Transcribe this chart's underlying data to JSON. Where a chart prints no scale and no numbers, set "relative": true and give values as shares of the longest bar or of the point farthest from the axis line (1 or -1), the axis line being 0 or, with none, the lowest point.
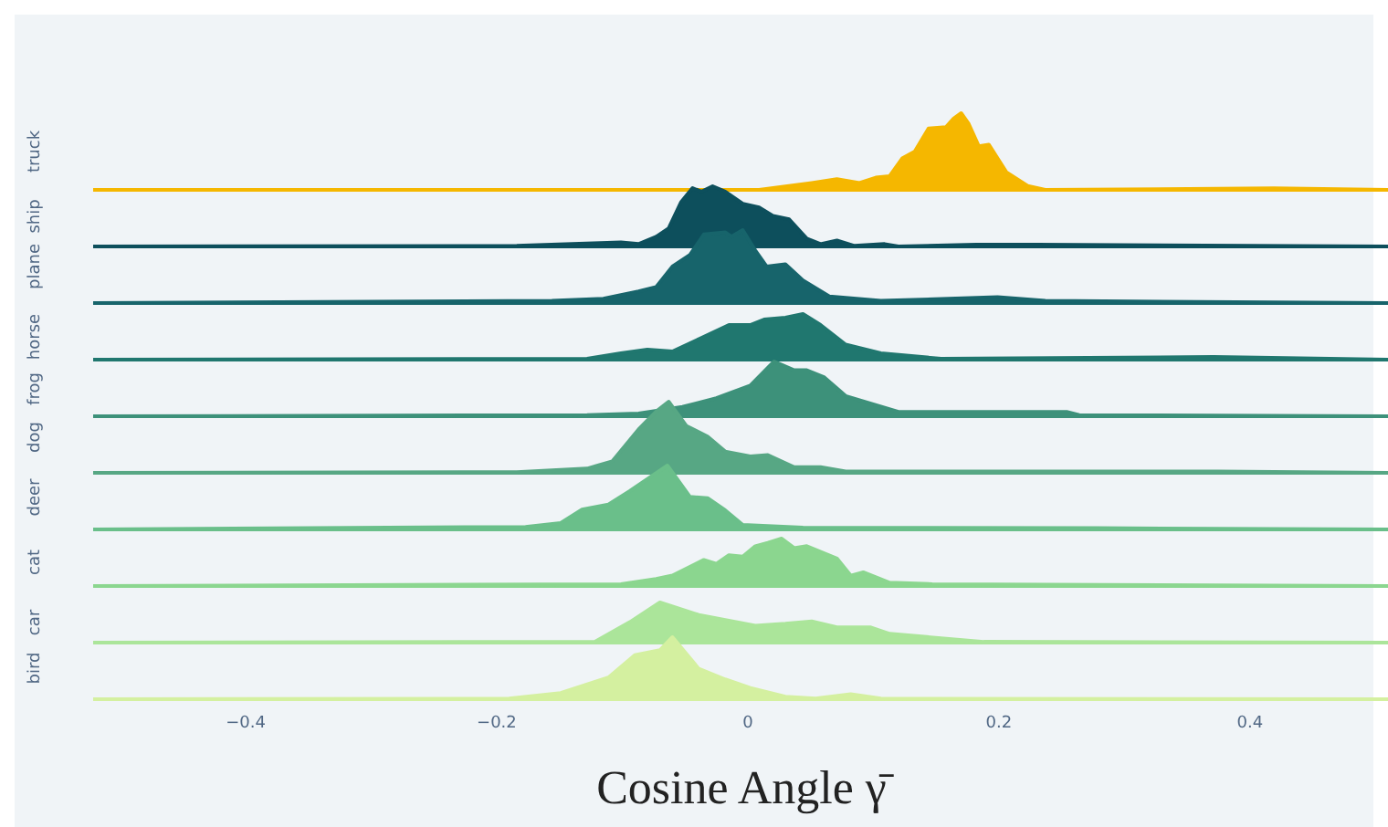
{
  "chart_data": [
    {
      "type": "area",
      "ylabel": "truck",
      "color": "#f5b700",
      "relative": true,
      "xlim": [
        -0.52,
        0.51
      ],
      "tick_labels": false,
      "x": [
        -0.52,
        0.009,
        0.051,
        0.071,
        0.089,
        0.102,
        0.113,
        0.123,
        0.133,
        0.144,
        0.158,
        0.164,
        0.17,
        0.176,
        0.184,
        0.192,
        0.206,
        0.223,
        0.237,
        0.419,
        0.51
      ],
      "values": [
        0,
        0,
        0.09,
        0.14,
        0.09,
        0.16,
        0.18,
        0.41,
        0.5,
        0.8,
        0.82,
        0.93,
        1,
        0.86,
        0.57,
        0.59,
        0.23,
        0.05,
        0,
        0.02,
        0
      ]
    },
    {
      "type": "area",
      "ylabel": "ship",
      "color": "#0d4f5c",
      "relative": true,
      "xlim": [
        -0.52,
        0.51
      ],
      "tick_labels": false,
      "x": [
        -0.52,
        -0.184,
        -0.101,
        -0.087,
        -0.073,
        -0.063,
        -0.053,
        -0.044,
        -0.037,
        -0.028,
        -0.018,
        -0.004,
        0.009,
        0.02,
        0.033,
        0.047,
        0.058,
        0.071,
        0.085,
        0.109,
        0.12,
        0.182,
        0.23,
        0.51
      ],
      "values": [
        0,
        0.01,
        0.07,
        0.04,
        0.16,
        0.3,
        0.74,
        0.97,
        0.91,
        1,
        0.91,
        0.71,
        0.65,
        0.51,
        0.45,
        0.13,
        0.04,
        0.1,
        0.01,
        0.04,
        0,
        0.03,
        0.03,
        0
      ]
    },
    {
      "type": "area",
      "ylabel": "plane",
      "color": "#17646b",
      "relative": true,
      "xlim": [
        -0.52,
        0.51
      ],
      "tick_labels": false,
      "x": [
        -0.52,
        -0.156,
        -0.115,
        -0.087,
        -0.073,
        -0.06,
        -0.046,
        -0.035,
        -0.018,
        -0.013,
        -0.004,
        0.006,
        0.015,
        0.03,
        0.044,
        0.065,
        0.106,
        0.199,
        0.237,
        0.51
      ],
      "values": [
        0,
        0.03,
        0.06,
        0.16,
        0.22,
        0.5,
        0.66,
        0.94,
        0.97,
        0.91,
        1,
        0.72,
        0.5,
        0.53,
        0.31,
        0.09,
        0.03,
        0.08,
        0.03,
        0
      ]
    },
    {
      "type": "area",
      "ylabel": "horse",
      "color": "#20776f",
      "relative": true,
      "xlim": [
        -0.52,
        0.51
      ],
      "tick_labels": false,
      "x": [
        -0.52,
        -0.128,
        -0.101,
        -0.08,
        -0.06,
        -0.039,
        -0.015,
        0.002,
        0.013,
        0.03,
        0.044,
        0.058,
        0.078,
        0.106,
        0.154,
        0.371,
        0.51
      ],
      "values": [
        0,
        0.02,
        0.14,
        0.22,
        0.18,
        0.45,
        0.76,
        0.76,
        0.88,
        0.92,
        1,
        0.76,
        0.33,
        0.14,
        0.02,
        0.06,
        0
      ]
    },
    {
      "type": "area",
      "ylabel": "frog",
      "color": "#3d917a",
      "relative": true,
      "xlim": [
        -0.52,
        0.51
      ],
      "tick_labels": false,
      "x": [
        -0.52,
        -0.128,
        -0.087,
        -0.052,
        -0.025,
        0.002,
        0.021,
        0.037,
        0.047,
        0.061,
        0.078,
        0.12,
        0.175,
        0.254,
        0.264,
        0.51
      ],
      "values": [
        0,
        0.02,
        0.05,
        0.17,
        0.33,
        0.56,
        1,
        0.84,
        0.84,
        0.71,
        0.37,
        0.08,
        0.08,
        0.08,
        0.02,
        0
      ]
    },
    {
      "type": "area",
      "ylabel": "dog",
      "color": "#57a784",
      "relative": true,
      "xlim": [
        -0.52,
        0.51
      ],
      "tick_labels": false,
      "x": [
        -0.52,
        -0.184,
        -0.128,
        -0.108,
        -0.087,
        -0.073,
        -0.063,
        -0.049,
        -0.032,
        -0.018,
        0.002,
        0.016,
        0.037,
        0.058,
        0.078,
        0.374,
        0.51
      ],
      "values": [
        0,
        0.01,
        0.06,
        0.16,
        0.61,
        0.86,
        1,
        0.66,
        0.51,
        0.3,
        0.23,
        0.25,
        0.08,
        0.08,
        0.02,
        0.02,
        0
      ]
    },
    {
      "type": "area",
      "ylabel": "deer",
      "color": "#6abf8a",
      "relative": true,
      "xlim": [
        -0.52,
        0.51
      ],
      "tick_labels": false,
      "x": [
        -0.52,
        -0.177,
        -0.149,
        -0.132,
        -0.111,
        -0.094,
        -0.064,
        -0.046,
        -0.032,
        -0.018,
        -0.004,
        0.044,
        0.278,
        0.51
      ],
      "values": [
        0,
        0.04,
        0.1,
        0.31,
        0.39,
        0.6,
        1,
        0.51,
        0.49,
        0.3,
        0.07,
        0.03,
        0.02,
        0
      ]
    },
    {
      "type": "area",
      "ylabel": "cat",
      "color": "#8bd68f",
      "relative": true,
      "xlim": [
        -0.52,
        0.51
      ],
      "tick_labels": false,
      "x": [
        -0.52,
        -0.101,
        -0.073,
        -0.06,
        -0.035,
        -0.025,
        -0.015,
        -0.004,
        0.006,
        0.016,
        0.027,
        0.037,
        0.047,
        0.071,
        0.082,
        0.092,
        0.113,
        0.147,
        0.51
      ],
      "values": [
        0,
        0.04,
        0.15,
        0.22,
        0.55,
        0.47,
        0.65,
        0.62,
        0.84,
        0.91,
        1,
        0.8,
        0.84,
        0.58,
        0.22,
        0.29,
        0.07,
        0.04,
        0
      ]
    },
    {
      "type": "area",
      "ylabel": "car",
      "color": "#abe59a",
      "relative": true,
      "xlim": [
        -0.52,
        0.51
      ],
      "tick_labels": false,
      "x": [
        -0.52,
        -0.122,
        -0.094,
        -0.07,
        -0.039,
        0.006,
        0.03,
        0.051,
        0.071,
        0.098,
        0.113,
        0.154,
        0.188,
        0.51
      ],
      "values": [
        0,
        0.02,
        0.51,
        1,
        0.69,
        0.42,
        0.47,
        0.53,
        0.38,
        0.38,
        0.22,
        0.11,
        0.02,
        0
      ]
    },
    {
      "type": "area",
      "ylabel": "bird",
      "color": "#d4f0a0",
      "relative": true,
      "xlim": [
        -0.52,
        0.51
      ],
      "tick_labels": "x",
      "xlabel": "Cosine Angle γ̄",
      "xticks": [
        {
          "value": -0.4,
          "label": "−0.4"
        },
        {
          "value": -0.2,
          "label": "−0.2"
        },
        0,
        0.2,
        0.4
      ],
      "x": [
        -0.52,
        -0.19,
        -0.149,
        -0.111,
        -0.09,
        -0.07,
        -0.06,
        -0.039,
        -0.018,
        0.002,
        0.03,
        0.054,
        0.082,
        0.106,
        0.51
      ],
      "values": [
        0,
        0.01,
        0.1,
        0.35,
        0.71,
        0.79,
        1,
        0.49,
        0.32,
        0.18,
        0.04,
        0.01,
        0.08,
        0.01,
        0
      ]
    }
  ]
}
